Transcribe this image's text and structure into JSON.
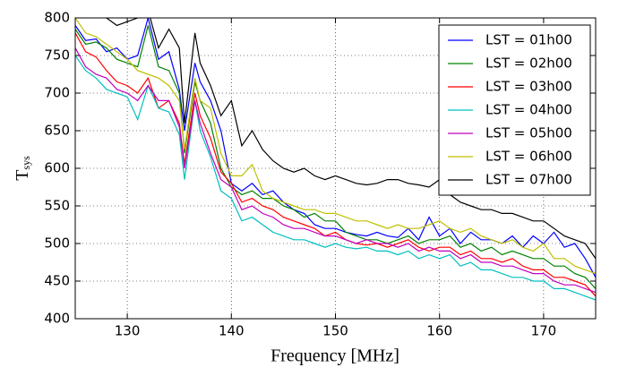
{
  "chart_data": {
    "type": "line",
    "xlabel": "Frequency [MHz]",
    "ylabel": {
      "main": "T",
      "sub": "sys"
    },
    "x": [
      125,
      126,
      127,
      128,
      129,
      130,
      131,
      132,
      133,
      134,
      135,
      135.5,
      136.5,
      137,
      138,
      139,
      140,
      141,
      142,
      143,
      144,
      145,
      146,
      147,
      148,
      149,
      150,
      151,
      152,
      153,
      154,
      155,
      156,
      157,
      158,
      159,
      160,
      161,
      162,
      163,
      164,
      165,
      166,
      167,
      168,
      169,
      170,
      171,
      172,
      173,
      174,
      175
    ],
    "series": [
      {
        "name": "LST = 01h00",
        "color": "#0000ff",
        "values": [
          790,
          770,
          772,
          755,
          760,
          745,
          750,
          800,
          745,
          755,
          705,
          650,
          740,
          715,
          690,
          650,
          580,
          570,
          580,
          565,
          570,
          555,
          545,
          540,
          525,
          520,
          520,
          515,
          512,
          510,
          515,
          510,
          508,
          520,
          505,
          535,
          510,
          520,
          500,
          515,
          505,
          505,
          500,
          510,
          495,
          510,
          500,
          515,
          495,
          500,
          480,
          455
        ]
      },
      {
        "name": "LST = 02h00",
        "color": "#008000",
        "values": [
          785,
          765,
          768,
          760,
          745,
          740,
          735,
          790,
          735,
          730,
          700,
          620,
          715,
          690,
          660,
          600,
          575,
          565,
          570,
          560,
          560,
          550,
          545,
          535,
          540,
          530,
          530,
          515,
          510,
          505,
          505,
          500,
          505,
          510,
          500,
          505,
          505,
          510,
          495,
          500,
          490,
          495,
          485,
          490,
          485,
          480,
          480,
          470,
          470,
          460,
          455,
          440
        ]
      },
      {
        "name": "LST = 03h00",
        "color": "#ff0000",
        "values": [
          780,
          755,
          748,
          730,
          715,
          710,
          700,
          720,
          680,
          690,
          660,
          605,
          700,
          670,
          640,
          595,
          580,
          555,
          560,
          550,
          545,
          535,
          530,
          525,
          520,
          510,
          515,
          505,
          500,
          498,
          500,
          495,
          500,
          505,
          495,
          490,
          495,
          495,
          485,
          490,
          480,
          480,
          475,
          480,
          470,
          465,
          465,
          455,
          455,
          450,
          445,
          430
        ]
      },
      {
        "name": "LST = 04h00",
        "color": "#00bfbf",
        "values": [
          750,
          730,
          720,
          705,
          700,
          695,
          665,
          710,
          680,
          675,
          645,
          585,
          690,
          650,
          615,
          570,
          560,
          530,
          535,
          525,
          515,
          510,
          505,
          505,
          500,
          495,
          500,
          495,
          493,
          495,
          490,
          490,
          485,
          490,
          480,
          485,
          480,
          485,
          470,
          475,
          465,
          465,
          460,
          455,
          455,
          450,
          450,
          440,
          440,
          435,
          430,
          425
        ]
      },
      {
        "name": "LST = 05h00",
        "color": "#bf00bf",
        "values": [
          760,
          735,
          725,
          720,
          705,
          700,
          690,
          710,
          690,
          690,
          655,
          600,
          690,
          660,
          620,
          585,
          575,
          545,
          550,
          540,
          535,
          525,
          520,
          520,
          515,
          510,
          510,
          505,
          500,
          505,
          500,
          500,
          495,
          500,
          490,
          495,
          490,
          490,
          480,
          485,
          475,
          475,
          470,
          470,
          465,
          460,
          460,
          450,
          445,
          445,
          440,
          435
        ]
      },
      {
        "name": "LST = 06h00",
        "color": "#bfbf00",
        "values": [
          800,
          780,
          775,
          765,
          755,
          745,
          730,
          725,
          720,
          710,
          690,
          625,
          720,
          690,
          680,
          620,
          590,
          590,
          605,
          570,
          560,
          555,
          550,
          545,
          545,
          540,
          540,
          535,
          530,
          530,
          525,
          520,
          525,
          520,
          520,
          525,
          530,
          520,
          515,
          520,
          510,
          505,
          500,
          505,
          495,
          490,
          500,
          480,
          480,
          470,
          465,
          460
        ]
      },
      {
        "name": "LST = 07h00",
        "color": "#000000",
        "values": [
          810,
          800,
          805,
          800,
          790,
          795,
          800,
          810,
          760,
          785,
          760,
          660,
          780,
          740,
          710,
          670,
          690,
          630,
          650,
          625,
          610,
          600,
          595,
          600,
          590,
          585,
          590,
          585,
          580,
          578,
          580,
          585,
          585,
          580,
          578,
          575,
          585,
          565,
          555,
          550,
          545,
          545,
          540,
          540,
          535,
          530,
          530,
          520,
          510,
          505,
          500,
          480
        ]
      }
    ],
    "xlim": [
      125,
      175
    ],
    "ylim": [
      400,
      800
    ],
    "xticks": [
      130,
      140,
      150,
      160,
      170
    ],
    "yticks": [
      400,
      450,
      500,
      550,
      600,
      650,
      700,
      750,
      800
    ],
    "grid": true,
    "legend": "upper right"
  }
}
